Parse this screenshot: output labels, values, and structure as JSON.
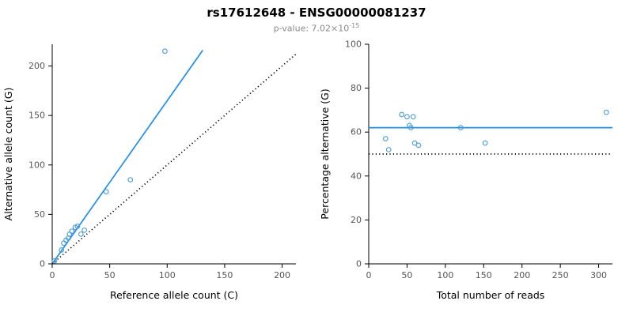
{
  "header": {
    "title": "rs17612648 - ENSG00000081237",
    "subtitle_base": "p-value: 7.02×10",
    "subtitle_exponent": "-15"
  },
  "colors": {
    "line_blue": "#1e8ee8",
    "point_blue": "#4a9bd5",
    "reference_black": "#000000",
    "axis_black": "#000000",
    "tick_text": "#555555"
  },
  "chart_data": [
    {
      "type": "scatter",
      "name": "allele-counts",
      "xlabel": "Reference allele count (C)",
      "ylabel": "Alternative allele count (G)",
      "xlim": [
        0,
        212
      ],
      "ylim": [
        0,
        222
      ],
      "xticks": [
        0,
        50,
        100,
        150,
        200
      ],
      "yticks": [
        0,
        50,
        100,
        150,
        200
      ],
      "points": [
        [
          2,
          3
        ],
        [
          8,
          14
        ],
        [
          10,
          21
        ],
        [
          12,
          24
        ],
        [
          14,
          26
        ],
        [
          15,
          30
        ],
        [
          17,
          33
        ],
        [
          20,
          37
        ],
        [
          22,
          38
        ],
        [
          25,
          30
        ],
        [
          28,
          34
        ],
        [
          47,
          73
        ],
        [
          68,
          85
        ],
        [
          98,
          215
        ]
      ],
      "lines": [
        {
          "name": "regression",
          "style": "solid",
          "color_key": "line_blue",
          "x1": 0,
          "y1": 0,
          "x2": 131,
          "y2": 216
        },
        {
          "name": "identity",
          "style": "dotted",
          "color_key": "reference_black",
          "x1": 0,
          "y1": 0,
          "x2": 212,
          "y2": 212
        }
      ]
    },
    {
      "type": "scatter",
      "name": "percentage-vs-reads",
      "xlabel": "Total number of reads",
      "ylabel": "Percentage alternative (G)",
      "xlim": [
        0,
        318
      ],
      "ylim": [
        0,
        100
      ],
      "xticks": [
        0,
        50,
        100,
        150,
        200,
        250,
        300
      ],
      "yticks": [
        0,
        20,
        40,
        60,
        80,
        100
      ],
      "points": [
        [
          22,
          57
        ],
        [
          26,
          52
        ],
        [
          43,
          68
        ],
        [
          50,
          67
        ],
        [
          53,
          63
        ],
        [
          55,
          62
        ],
        [
          58,
          67
        ],
        [
          60,
          55
        ],
        [
          65,
          54
        ],
        [
          120,
          62
        ],
        [
          152,
          55
        ],
        [
          310,
          69
        ]
      ],
      "lines": [
        {
          "name": "mean-percentage",
          "style": "solid",
          "color_key": "line_blue",
          "x1": 0,
          "y1": 62,
          "x2": 318,
          "y2": 62
        },
        {
          "name": "fifty-percent",
          "style": "dotted",
          "color_key": "reference_black",
          "x1": 0,
          "y1": 50,
          "x2": 318,
          "y2": 50
        }
      ]
    }
  ]
}
